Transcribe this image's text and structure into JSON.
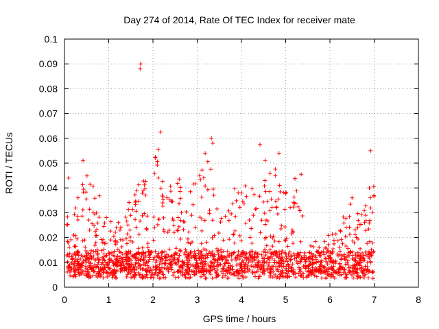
{
  "chart_data": {
    "type": "scatter",
    "title": "Day 274 of 2014, Rate Of TEC Index for receiver mate",
    "xlabel": "GPS time / hours",
    "ylabel": "ROTI / TECUs",
    "xlim": [
      0,
      8
    ],
    "ylim": [
      0,
      0.1
    ],
    "x_ticks": [
      "0",
      "1",
      "2",
      "3",
      "4",
      "5",
      "6",
      "7",
      "8"
    ],
    "y_ticks": [
      "0",
      "0.01",
      "0.02",
      "0.03",
      "0.04",
      "0.05",
      "0.06",
      "0.07",
      "0.08",
      "0.09",
      "0.1"
    ],
    "grid": true,
    "marker": "+",
    "series_color": "#ff0000",
    "point_count": 1800,
    "x_range_of_data": [
      0.05,
      7.0
    ],
    "notable_points": [
      {
        "x": 1.72,
        "y": 0.09
      },
      {
        "x": 1.71,
        "y": 0.088
      },
      {
        "x": 2.17,
        "y": 0.0625
      },
      {
        "x": 3.32,
        "y": 0.06
      },
      {
        "x": 3.35,
        "y": 0.058
      },
      {
        "x": 4.42,
        "y": 0.0575
      },
      {
        "x": 2.12,
        "y": 0.0555
      },
      {
        "x": 6.92,
        "y": 0.055
      },
      {
        "x": 4.85,
        "y": 0.054
      },
      {
        "x": 3.18,
        "y": 0.054
      },
      {
        "x": 0.42,
        "y": 0.051
      },
      {
        "x": 0.09,
        "y": 0.044
      },
      {
        "x": 5.35,
        "y": 0.0455
      },
      {
        "x": 6.5,
        "y": 0.036
      }
    ],
    "envelope_hours": [
      0.0,
      0.25,
      0.5,
      0.75,
      1.0,
      1.25,
      1.5,
      1.75,
      2.0,
      2.25,
      2.5,
      2.75,
      3.0,
      3.25,
      3.5,
      3.75,
      4.0,
      4.25,
      4.5,
      4.75,
      5.0,
      5.25,
      5.5,
      5.75,
      6.0,
      6.25,
      6.5,
      6.75,
      7.0
    ],
    "upper_envelope": [
      0.045,
      0.035,
      0.048,
      0.04,
      0.028,
      0.026,
      0.037,
      0.045,
      0.055,
      0.047,
      0.047,
      0.038,
      0.045,
      0.056,
      0.03,
      0.038,
      0.044,
      0.04,
      0.052,
      0.052,
      0.038,
      0.045,
      0.02,
      0.018,
      0.022,
      0.03,
      0.036,
      0.03,
      0.05
    ],
    "baseline_level": 0.01
  }
}
